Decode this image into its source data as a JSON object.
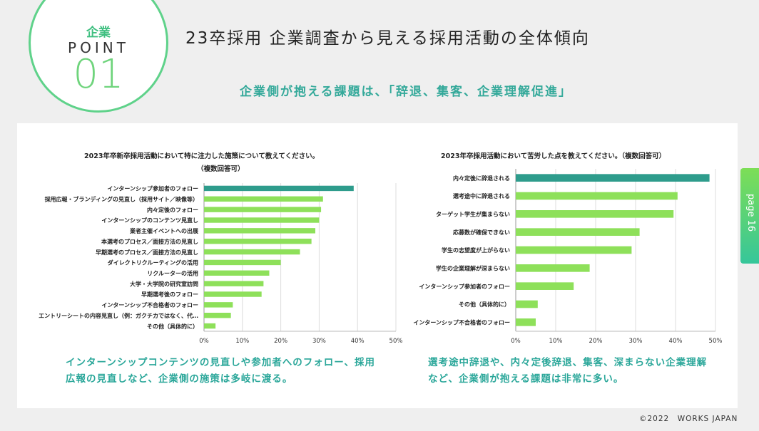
{
  "header": {
    "badge_label": "企業",
    "badge_point": "POINT",
    "badge_number": "01",
    "title": "23卒採用 企業調査から見える採用活動の全体傾向",
    "subtitle": "企業側が抱える課題は、「辞退、集客、企業理解促進」"
  },
  "side_tab": {
    "label": "page 16"
  },
  "footer": {
    "copyright": "©2022　WORKS JAPAN"
  },
  "captions": {
    "left_line1": "インターンシップコンテンツの見直しや参加者へのフォロー、採用",
    "left_line2": "広報の見直しなど、企業側の施策は多岐に渡る。",
    "right_line1": "選考途中辞退や、内々定後辞退、集客、深まらない企業理解",
    "right_line2": "など、企業側が抱える課題は非常に多い。"
  },
  "colors": {
    "highlight": "#2e9c8c",
    "bar": "#8ee05a",
    "accent": "#34a99a"
  },
  "chart_data": [
    {
      "type": "bar",
      "orientation": "horizontal",
      "title": "2023年卒新卒採用活動において特に注力した施策について教えてください。",
      "title_note": "（複数回答可）",
      "categories": [
        "インターンシップ参加者のフォロー",
        "採用広報・ブランディングの見直し（採用サイト／映像等）",
        "内々定後のフォロー",
        "インターンシップのコンテンツ見直し",
        "業者主催イベントへの出展",
        "本選考のプロセス／面接方法の見直し",
        "早期選考のプロセス／面接方法の見直し",
        "ダイレクトリクルーティングの活用",
        "リクルーターの活用",
        "大学・大学院の研究室訪問",
        "早期選考後のフォロー",
        "インターンシップ不合格者のフォロー",
        "エントリーシートの内容見直し（例：ガクチカではなく、代…",
        "その他（具体的に）"
      ],
      "values": [
        39,
        31,
        30.5,
        30,
        29,
        28,
        25,
        20,
        17,
        15.5,
        15,
        7.5,
        7,
        3
      ],
      "highlight_index": 0,
      "xlim": [
        0,
        50
      ],
      "xticks": [
        "0%",
        "10%",
        "20%",
        "30%",
        "40%",
        "50%"
      ]
    },
    {
      "type": "bar",
      "orientation": "horizontal",
      "title": "2023年卒採用活動において苦労した点を教えてください。（複数回答可）",
      "categories": [
        "内々定後に辞退される",
        "選考途中に辞退される",
        "ターゲット学生が集まらない",
        "応募数が確保できない",
        "学生の志望度が上がらない",
        "学生の企業理解が深まらない",
        "インターンシップ参加者のフォロー",
        "その他（具体的に）",
        "インターンシップ不合格者のフォロー"
      ],
      "values": [
        48.5,
        40.5,
        39.5,
        31,
        29,
        18.5,
        14.5,
        5.5,
        5
      ],
      "highlight_index": 0,
      "xlim": [
        0,
        50
      ],
      "xticks": [
        "0%",
        "10%",
        "20%",
        "30%",
        "40%",
        "50%"
      ]
    }
  ]
}
